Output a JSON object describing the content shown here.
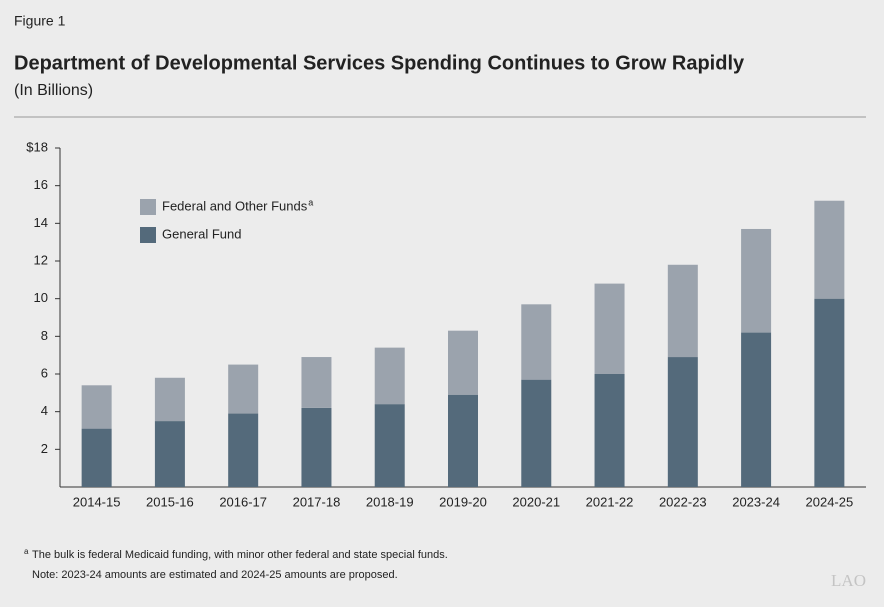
{
  "figure_label": "Figure 1",
  "chart_data": {
    "type": "stacked_bar",
    "title": "Department of Developmental Services Spending Continues to Grow Rapidly",
    "subtitle": "(In Billions)",
    "categories": [
      "2014-15",
      "2015-16",
      "2016-17",
      "2017-18",
      "2018-19",
      "2019-20",
      "2020-21",
      "2021-22",
      "2022-23",
      "2023-24",
      "2024-25"
    ],
    "series": [
      {
        "name": "General Fund",
        "color": "#546a7b",
        "values": [
          3.1,
          3.5,
          3.9,
          4.2,
          4.4,
          4.9,
          5.7,
          6.0,
          6.9,
          8.2,
          10.0
        ]
      },
      {
        "name": "Federal and Other Funds",
        "footnote_marker": "a",
        "color": "#9ba3ad",
        "values": [
          2.3,
          2.3,
          2.6,
          2.7,
          3.0,
          3.4,
          4.0,
          4.8,
          4.9,
          5.5,
          5.2
        ]
      }
    ],
    "ylim": [
      0,
      18
    ],
    "yticks": [
      2,
      4,
      6,
      8,
      10,
      12,
      14,
      16,
      {
        "value": 18,
        "label": "$18"
      }
    ],
    "legend_position": "upper left"
  },
  "footnotes": [
    {
      "marker": "a",
      "text": "The bulk is federal Medicaid funding, with minor other federal and state special funds."
    }
  ],
  "note": "Note: 2023-24 amounts are estimated and 2024-25 amounts are proposed.",
  "logo": "LAO"
}
